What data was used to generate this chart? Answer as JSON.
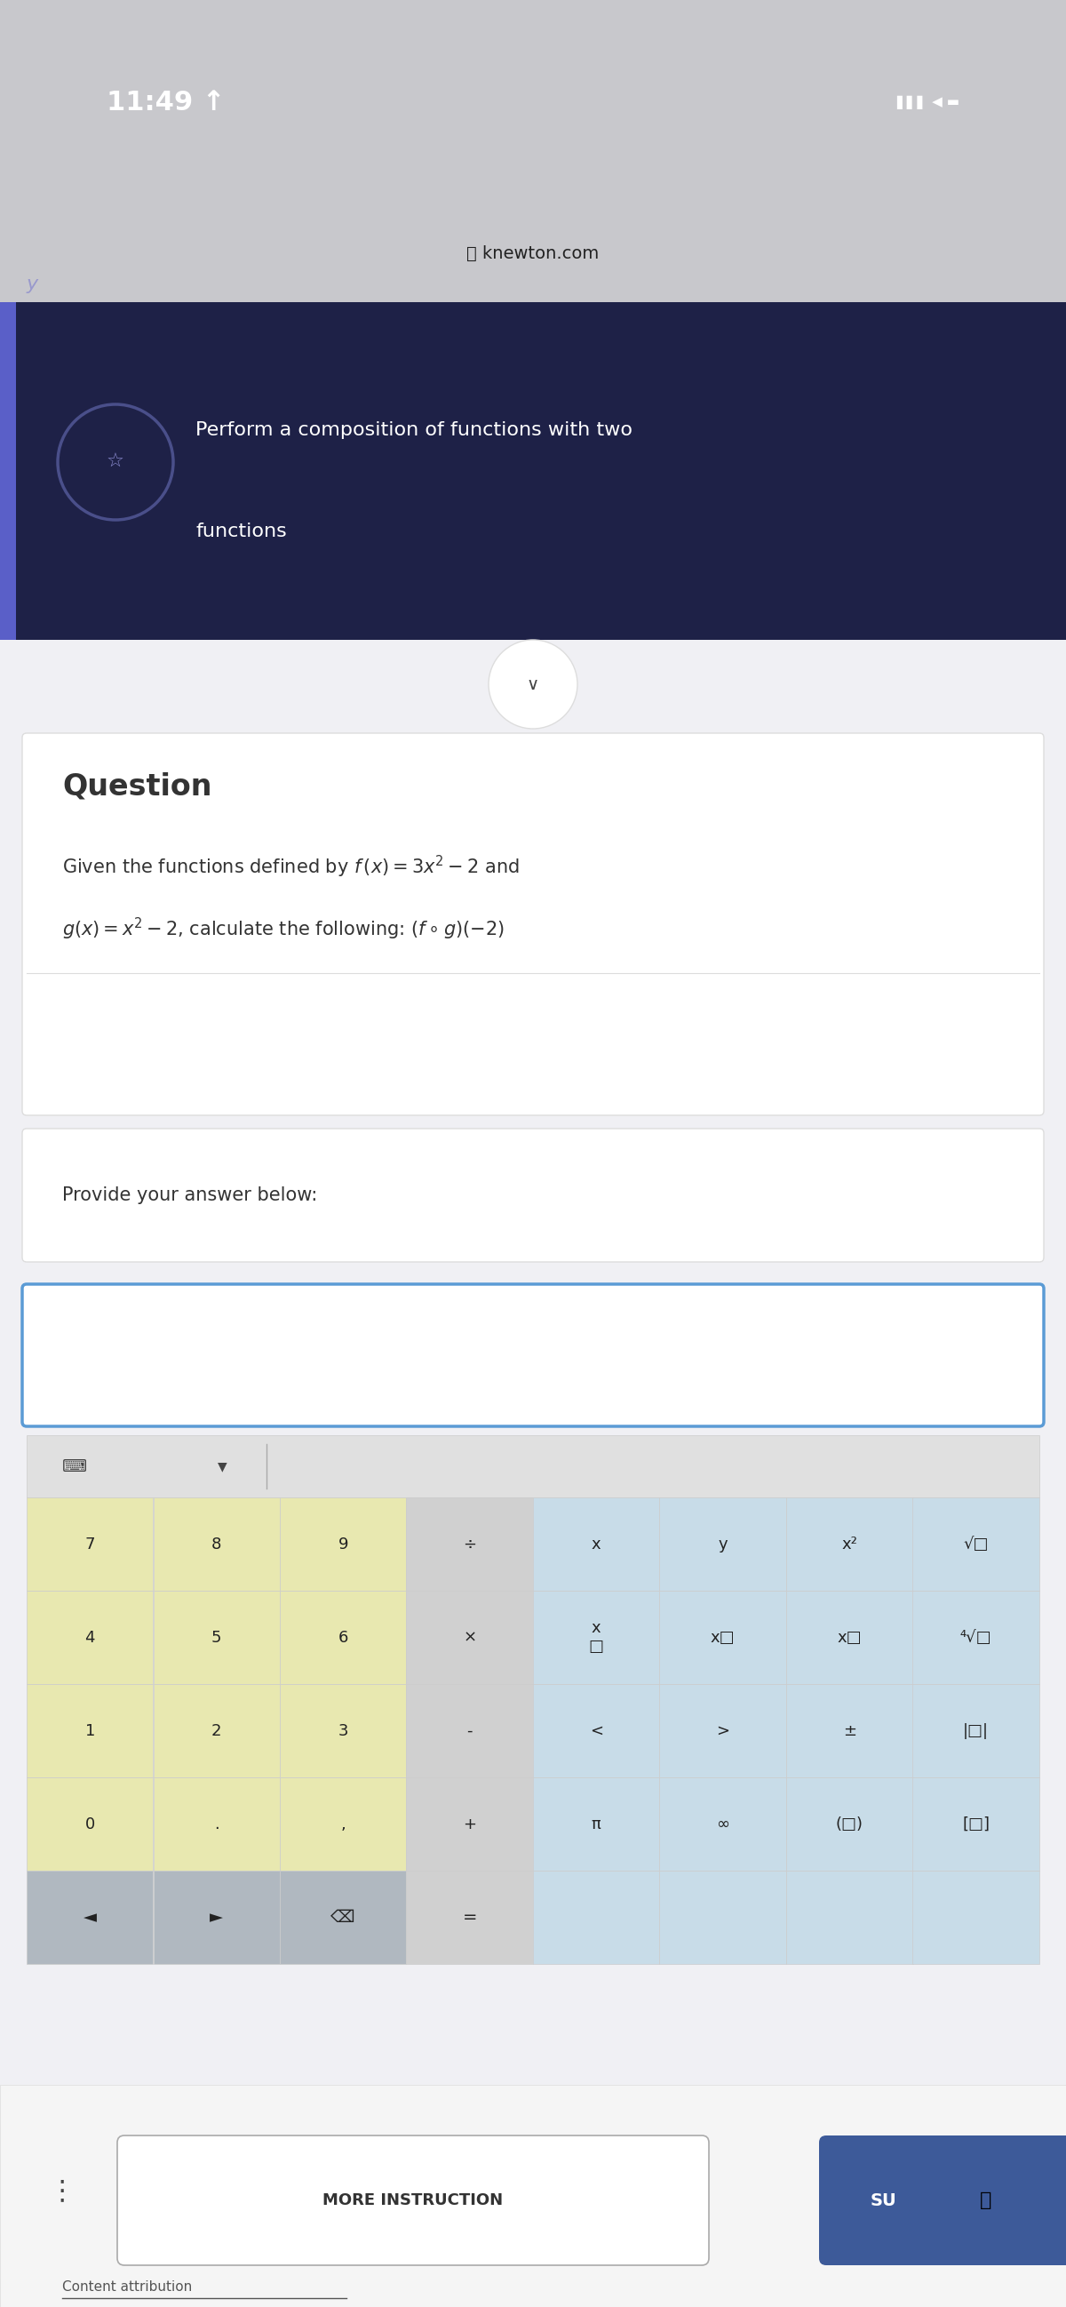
{
  "status_bar_bg": "#c8c8cc",
  "status_bar_text": "11:49",
  "status_bar_height": 0.09,
  "url_bar_bg": "#c8c8cc",
  "url_text": "knewton.com",
  "header_bg": "#1e2147",
  "header_text_line1": "Perform a composition of functions with two",
  "header_text_line2": "functions",
  "header_accent_color": "#5a5fc8",
  "section_bg": "#f0f0f4",
  "card_bg": "#ffffff",
  "question_title": "Question",
  "question_text_line1": "Given the functions defined by f (x) = 3x² – 2 and",
  "question_text_line2": "g(x) = x² – 2, calculate the following: (f • g)(−2)",
  "provide_text": "Provide your answer below:",
  "input_border": "#5b9bd5",
  "keyboard_num_bg": "#e8e8b0",
  "keyboard_op_bg": "#d0d0d0",
  "keyboard_sym_bg": "#c8dce8",
  "keyboard_dark_bg": "#b0b8c0",
  "keyboard_white_bg": "#ffffff",
  "bottom_bar_bg": "#f5f5f5",
  "more_instruction_text": "MORE INSTRUCTION",
  "submit_btn_bg": "#3d5a99",
  "submit_btn_text": "SU",
  "content_attribution": "Content attribution"
}
